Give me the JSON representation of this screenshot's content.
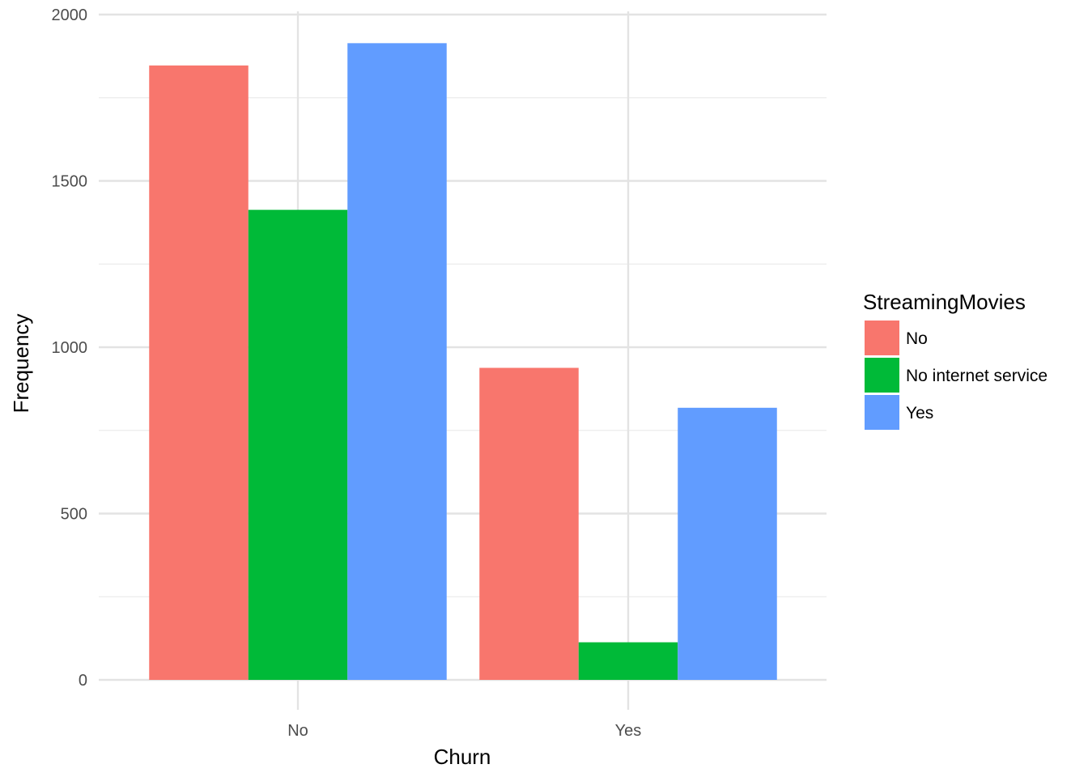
{
  "chart_data": {
    "type": "bar",
    "xlabel": "Churn",
    "ylabel": "Frequency",
    "categories": [
      "No",
      "Yes"
    ],
    "ylim": [
      0,
      2000
    ],
    "yticks": [
      0,
      500,
      1000,
      1500,
      2000
    ],
    "grid": true,
    "legend": {
      "title": "StreamingMovies",
      "placement": "right"
    },
    "series": [
      {
        "name": "No",
        "color": "#F8766D",
        "values": [
          1847,
          938
        ]
      },
      {
        "name": "No internet service",
        "color": "#00BA38",
        "values": [
          1413,
          113
        ]
      },
      {
        "name": "Yes",
        "color": "#619CFF",
        "values": [
          1914,
          818
        ]
      }
    ]
  }
}
